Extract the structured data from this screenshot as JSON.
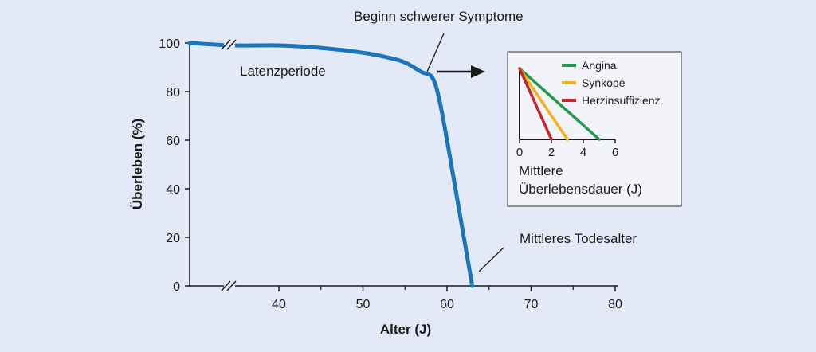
{
  "chart_data": [
    {
      "type": "line",
      "xlabel": "Alter (J)",
      "ylabel": "Überleben (%)",
      "xlim": [
        30,
        80
      ],
      "ylim": [
        0,
        100
      ],
      "x_ticks": [
        "40",
        "50",
        "60",
        "70",
        "80"
      ],
      "y_ticks": [
        "0",
        "20",
        "40",
        "60",
        "80",
        "100"
      ],
      "axis_breaks": [
        "x",
        "y"
      ],
      "grid": false,
      "color": "#1b75bc",
      "series": [
        {
          "x": [
            30,
            35,
            40,
            45,
            50,
            53,
            55,
            57,
            58.2,
            59,
            60,
            61,
            62,
            62.6,
            63
          ],
          "y": [
            100,
            99,
            99,
            98,
            96,
            94,
            92,
            88,
            86,
            78,
            60,
            40,
            20,
            8,
            0
          ]
        }
      ],
      "annotations": [
        {
          "text": "Beginn schwerer Symptome",
          "x": 58,
          "y": 88
        },
        {
          "text": "Latenzperiode"
        },
        {
          "text": "Mittleres Todesalter",
          "x": 63,
          "y": 0
        }
      ]
    },
    {
      "type": "line",
      "title": "Mittlere Überlebensdauer (J)",
      "title_lines": [
        "Mittlere",
        "Überlebensdauer (J)"
      ],
      "xlim": [
        0,
        6
      ],
      "x_ticks": [
        "0",
        "2",
        "4",
        "6"
      ],
      "legend_position": "top-right",
      "series": [
        {
          "name": "Angina",
          "color": "#1e9b4a",
          "x": [
            0,
            5
          ],
          "y": [
            1,
            0
          ]
        },
        {
          "name": "Synkope",
          "color": "#f2b21b",
          "x": [
            0,
            3
          ],
          "y": [
            1,
            0
          ]
        },
        {
          "name": "Herzinsuffizienz",
          "color": "#c8262b",
          "x": [
            0,
            2
          ],
          "y": [
            1,
            0
          ]
        }
      ]
    }
  ]
}
